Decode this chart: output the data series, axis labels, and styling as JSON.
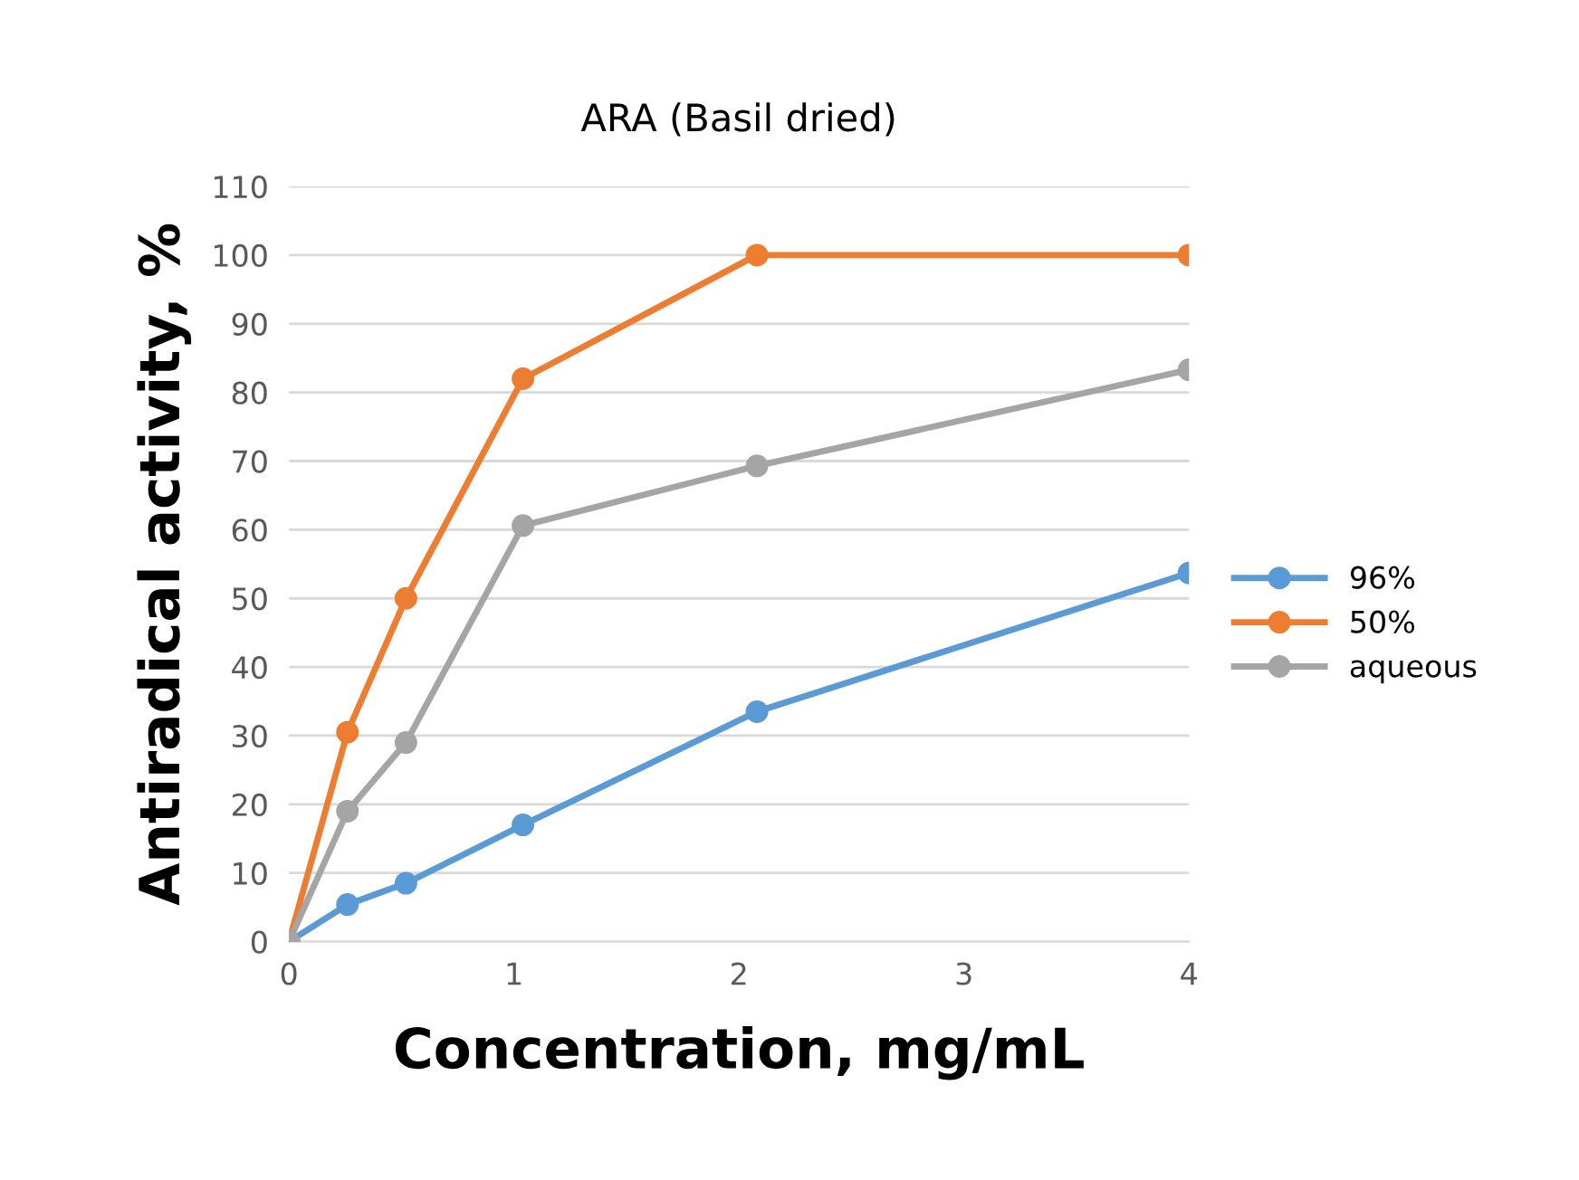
{
  "chart_data": {
    "type": "line",
    "title": "ARA (Basil dried)",
    "xlabel": "Concentration, mg/mL",
    "ylabel": "Antiradical activity, %",
    "x": [
      0,
      0.26,
      0.52,
      1.04,
      2.08,
      4
    ],
    "series": [
      {
        "name": "96%",
        "color": "#5b9bd5",
        "values": [
          0,
          5.4,
          8.5,
          17,
          33.5,
          53.7
        ]
      },
      {
        "name": "50%",
        "color": "#ed7d31",
        "values": [
          0,
          30.5,
          50,
          82,
          100,
          100
        ]
      },
      {
        "name": "aqueous",
        "color": "#a5a5a5",
        "values": [
          0,
          19,
          29,
          60.6,
          69.3,
          83.3
        ]
      }
    ],
    "xlim": [
      0,
      4
    ],
    "xticks": [
      0,
      1,
      2,
      3,
      4
    ],
    "ylim": [
      0,
      110
    ],
    "yticks": [
      0,
      10,
      20,
      30,
      40,
      50,
      60,
      70,
      80,
      90,
      100,
      110
    ],
    "grid": "y",
    "legend": "right",
    "marker": "circle",
    "line_style": "solid"
  }
}
